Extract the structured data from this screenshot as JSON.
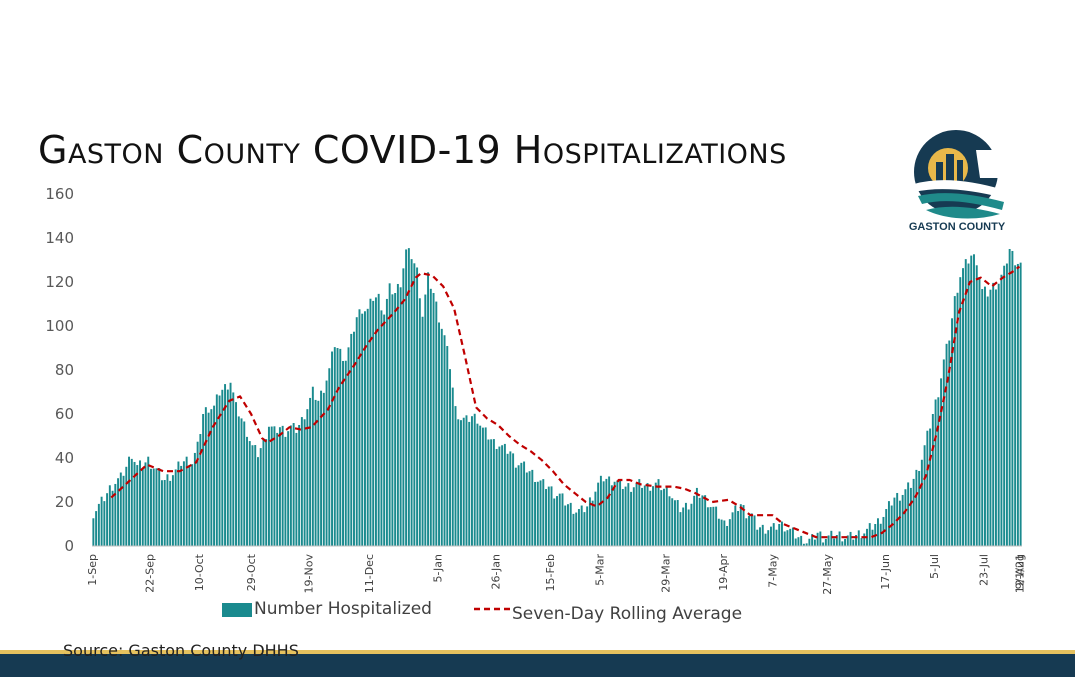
{
  "title": "Gaston County COVID-19 Hospitalizations",
  "logo_text": "GASTON COUNTY",
  "source": "Source: Gaston County DHHS",
  "colors": {
    "bar": "#1a8a8e",
    "line": "#c00000",
    "footer_gold": "#e5c15e",
    "footer_navy": "#163a52",
    "logo_navy": "#163a52",
    "logo_teal": "#1f8a8a",
    "logo_gold": "#e8b84a"
  },
  "chart_data": {
    "type": "bar",
    "title": "Gaston County COVID-19 Hospitalizations",
    "xlabel": "",
    "ylabel": "",
    "ylim": [
      0,
      160
    ],
    "yticks": [
      0,
      20,
      40,
      60,
      80,
      100,
      120,
      140,
      160
    ],
    "start_date": "1-Sep",
    "days": 375,
    "x_tick_labels": [
      "1-Sep",
      "22-Sep",
      "10-Oct",
      "29-Oct",
      "19-Nov",
      "11-Dec",
      "5-Jan",
      "26-Jan",
      "15-Feb",
      "5-Mar",
      "29-Mar",
      "19-Apr",
      "7-May",
      "27-May",
      "17-Jun",
      "5-Jul",
      "23-Jul",
      "12-Aug",
      "9/1/21"
    ],
    "x_tick_days": [
      0,
      21,
      39,
      58,
      79,
      101,
      126,
      147,
      167,
      185,
      209,
      230,
      248,
      268,
      289,
      307,
      325,
      345,
      365
    ],
    "bar_anchors": [
      [
        0,
        15
      ],
      [
        3,
        20
      ],
      [
        6,
        26
      ],
      [
        8,
        29
      ],
      [
        10,
        31
      ],
      [
        12,
        36
      ],
      [
        14,
        42
      ],
      [
        16,
        36
      ],
      [
        18,
        37
      ],
      [
        20,
        39
      ],
      [
        22,
        36
      ],
      [
        24,
        33
      ],
      [
        26,
        30
      ],
      [
        28,
        32
      ],
      [
        30,
        34
      ],
      [
        32,
        38
      ],
      [
        34,
        39
      ],
      [
        36,
        38
      ],
      [
        38,
        45
      ],
      [
        40,
        60
      ],
      [
        42,
        63
      ],
      [
        44,
        63
      ],
      [
        46,
        70
      ],
      [
        48,
        72
      ],
      [
        50,
        75
      ],
      [
        52,
        63
      ],
      [
        54,
        58
      ],
      [
        56,
        52
      ],
      [
        58,
        45
      ],
      [
        60,
        42
      ],
      [
        62,
        47
      ],
      [
        64,
        55
      ],
      [
        66,
        52
      ],
      [
        68,
        54
      ],
      [
        70,
        52
      ],
      [
        72,
        54
      ],
      [
        74,
        53
      ],
      [
        76,
        57
      ],
      [
        78,
        63
      ],
      [
        80,
        70
      ],
      [
        82,
        66
      ],
      [
        84,
        72
      ],
      [
        86,
        80
      ],
      [
        88,
        92
      ],
      [
        90,
        88
      ],
      [
        92,
        85
      ],
      [
        94,
        94
      ],
      [
        96,
        104
      ],
      [
        98,
        108
      ],
      [
        100,
        107
      ],
      [
        102,
        113
      ],
      [
        104,
        113
      ],
      [
        106,
        106
      ],
      [
        108,
        117
      ],
      [
        110,
        115
      ],
      [
        112,
        120
      ],
      [
        114,
        134
      ],
      [
        116,
        132
      ],
      [
        118,
        125
      ],
      [
        120,
        105
      ],
      [
        122,
        122
      ],
      [
        124,
        115
      ],
      [
        126,
        104
      ],
      [
        128,
        95
      ],
      [
        130,
        82
      ],
      [
        132,
        62
      ],
      [
        134,
        58
      ],
      [
        136,
        57
      ],
      [
        138,
        59
      ],
      [
        140,
        58
      ],
      [
        142,
        53
      ],
      [
        144,
        50
      ],
      [
        146,
        47
      ],
      [
        148,
        46
      ],
      [
        150,
        44
      ],
      [
        152,
        43
      ],
      [
        154,
        38
      ],
      [
        156,
        37
      ],
      [
        158,
        35
      ],
      [
        160,
        33
      ],
      [
        162,
        30
      ],
      [
        164,
        28
      ],
      [
        166,
        27
      ],
      [
        168,
        24
      ],
      [
        170,
        23
      ],
      [
        172,
        20
      ],
      [
        174,
        18
      ],
      [
        176,
        16
      ],
      [
        178,
        16
      ],
      [
        180,
        18
      ],
      [
        182,
        23
      ],
      [
        184,
        28
      ],
      [
        186,
        31
      ],
      [
        188,
        30
      ],
      [
        190,
        30
      ],
      [
        192,
        28
      ],
      [
        194,
        27
      ],
      [
        196,
        27
      ],
      [
        198,
        28
      ],
      [
        200,
        28
      ],
      [
        202,
        27
      ],
      [
        204,
        28
      ],
      [
        206,
        28
      ],
      [
        208,
        26
      ],
      [
        210,
        25
      ],
      [
        212,
        20
      ],
      [
        214,
        17
      ],
      [
        216,
        18
      ],
      [
        218,
        20
      ],
      [
        220,
        24
      ],
      [
        222,
        23
      ],
      [
        224,
        20
      ],
      [
        226,
        17
      ],
      [
        228,
        14
      ],
      [
        230,
        10
      ],
      [
        232,
        13
      ],
      [
        234,
        16
      ],
      [
        236,
        19
      ],
      [
        238,
        15
      ],
      [
        240,
        14
      ],
      [
        242,
        9
      ],
      [
        244,
        8
      ],
      [
        246,
        8
      ],
      [
        248,
        8
      ],
      [
        250,
        10
      ],
      [
        252,
        9
      ],
      [
        254,
        7
      ],
      [
        256,
        5
      ],
      [
        258,
        3
      ],
      [
        260,
        2
      ],
      [
        262,
        3
      ],
      [
        264,
        6
      ],
      [
        266,
        4
      ],
      [
        268,
        4
      ],
      [
        270,
        5
      ],
      [
        272,
        5
      ],
      [
        274,
        4
      ],
      [
        276,
        4
      ],
      [
        278,
        5
      ],
      [
        280,
        6
      ],
      [
        282,
        7
      ],
      [
        284,
        9
      ],
      [
        286,
        11
      ],
      [
        288,
        14
      ],
      [
        290,
        18
      ],
      [
        292,
        22
      ],
      [
        294,
        23
      ],
      [
        296,
        25
      ],
      [
        298,
        28
      ],
      [
        300,
        33
      ],
      [
        302,
        40
      ],
      [
        304,
        50
      ],
      [
        306,
        60
      ],
      [
        308,
        70
      ],
      [
        310,
        84
      ],
      [
        312,
        95
      ],
      [
        314,
        112
      ],
      [
        316,
        123
      ],
      [
        318,
        128
      ],
      [
        320,
        132
      ],
      [
        322,
        130
      ],
      [
        324,
        116
      ],
      [
        326,
        115
      ],
      [
        328,
        118
      ],
      [
        330,
        120
      ],
      [
        332,
        125
      ],
      [
        334,
        135
      ],
      [
        336,
        130
      ],
      [
        338,
        128
      ]
    ],
    "rolling_avg_anchors": [
      [
        7,
        22
      ],
      [
        14,
        30
      ],
      [
        20,
        37
      ],
      [
        26,
        34
      ],
      [
        32,
        34
      ],
      [
        38,
        38
      ],
      [
        44,
        54
      ],
      [
        50,
        66
      ],
      [
        54,
        68
      ],
      [
        58,
        60
      ],
      [
        62,
        49
      ],
      [
        64,
        47
      ],
      [
        68,
        50
      ],
      [
        72,
        54
      ],
      [
        76,
        53
      ],
      [
        80,
        54
      ],
      [
        86,
        62
      ],
      [
        90,
        72
      ],
      [
        96,
        83
      ],
      [
        100,
        91
      ],
      [
        104,
        98
      ],
      [
        110,
        106
      ],
      [
        114,
        112
      ],
      [
        118,
        122
      ],
      [
        120,
        124
      ],
      [
        124,
        123
      ],
      [
        128,
        118
      ],
      [
        132,
        108
      ],
      [
        136,
        86
      ],
      [
        140,
        63
      ],
      [
        144,
        58
      ],
      [
        148,
        55
      ],
      [
        152,
        50
      ],
      [
        156,
        46
      ],
      [
        160,
        43
      ],
      [
        164,
        39
      ],
      [
        168,
        34
      ],
      [
        172,
        28
      ],
      [
        176,
        24
      ],
      [
        180,
        20
      ],
      [
        184,
        18
      ],
      [
        188,
        22
      ],
      [
        192,
        30
      ],
      [
        196,
        30
      ],
      [
        200,
        28
      ],
      [
        206,
        27
      ],
      [
        212,
        27
      ],
      [
        216,
        26
      ],
      [
        220,
        24
      ],
      [
        226,
        20
      ],
      [
        232,
        21
      ],
      [
        236,
        18
      ],
      [
        240,
        14
      ],
      [
        244,
        14
      ],
      [
        248,
        14
      ],
      [
        252,
        10
      ],
      [
        256,
        8
      ],
      [
        260,
        6
      ],
      [
        264,
        4
      ],
      [
        270,
        4
      ],
      [
        276,
        4
      ],
      [
        280,
        4
      ],
      [
        284,
        4
      ],
      [
        288,
        6
      ],
      [
        292,
        10
      ],
      [
        296,
        15
      ],
      [
        300,
        22
      ],
      [
        304,
        32
      ],
      [
        308,
        52
      ],
      [
        312,
        76
      ],
      [
        316,
        106
      ],
      [
        320,
        120
      ],
      [
        324,
        122
      ],
      [
        328,
        118
      ],
      [
        332,
        122
      ],
      [
        336,
        125
      ],
      [
        338,
        127
      ]
    ]
  },
  "legend": {
    "bars_label": "Number Hospitalized",
    "line_label": "Seven-Day Rolling Average"
  }
}
